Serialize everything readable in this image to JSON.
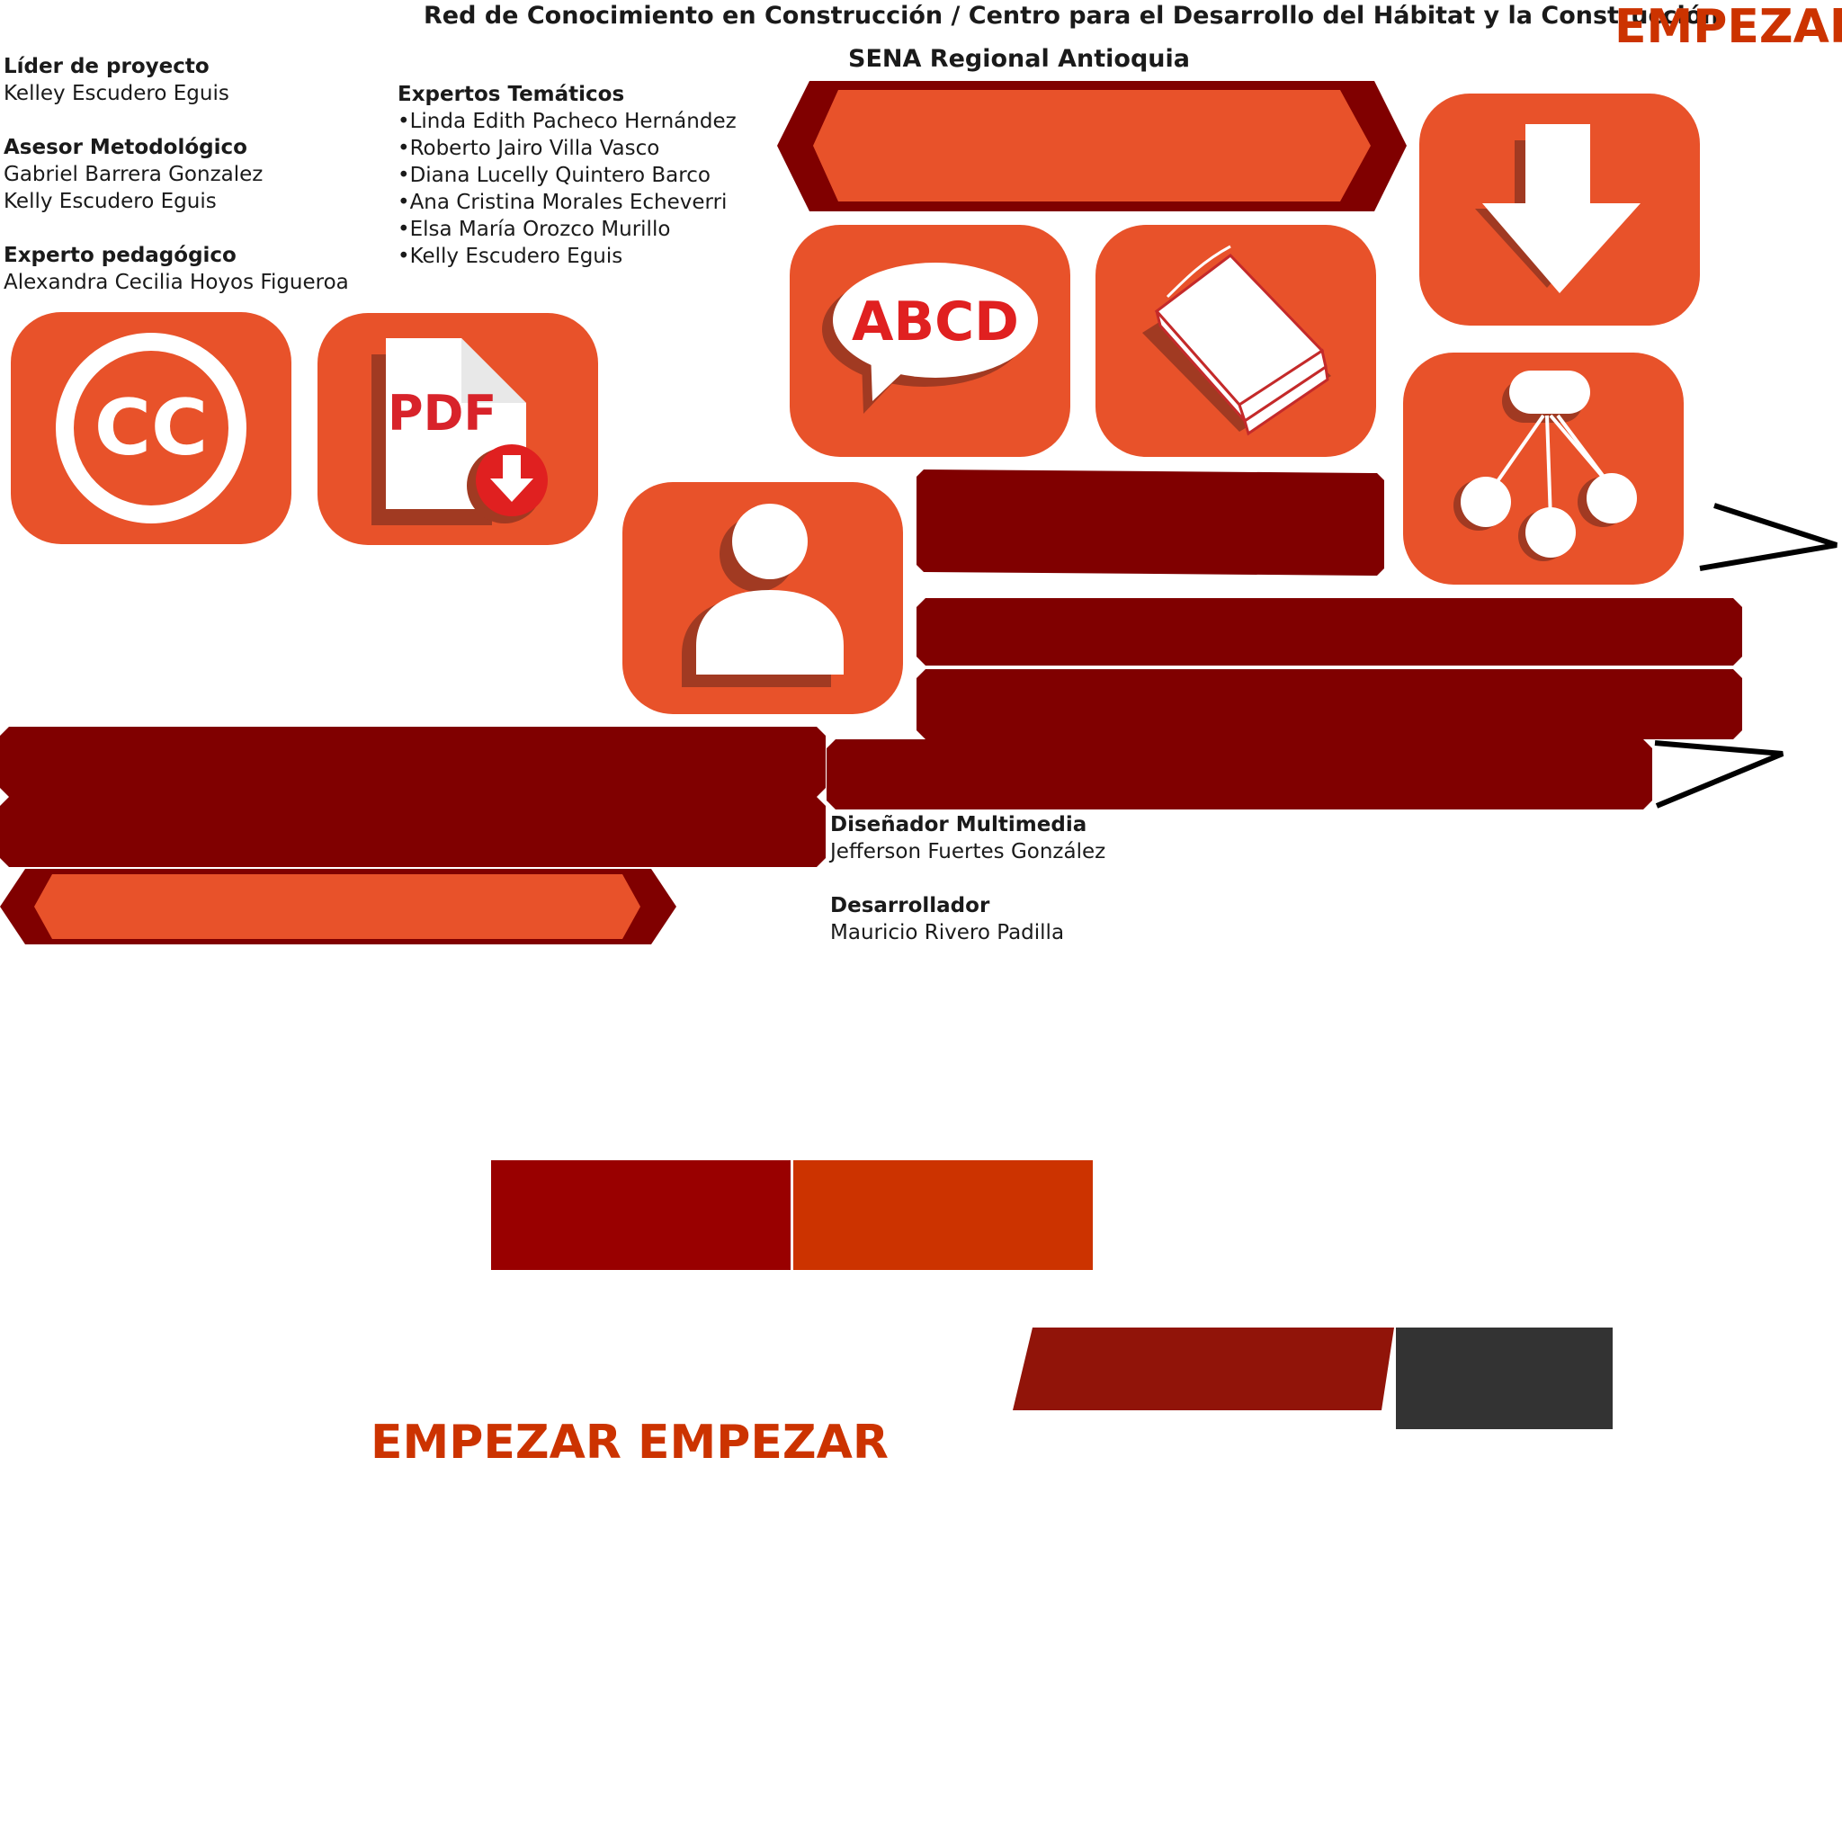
{
  "header": {
    "title": "Red de Conocimiento en Construcción / Centro para el Desarrollo del Hábitat y la Construcción",
    "subtitle": "SENA Regional Antioquia",
    "start_label": "EMPEZAR"
  },
  "credits": {
    "lider_title": "Líder de proyecto",
    "lider_name": "Kelley Escudero Eguis",
    "asesor_title": "Asesor Metodológico",
    "asesor_names": [
      "Gabriel Barrera Gonzalez",
      "Kelly Escudero Eguis"
    ],
    "pedagogico_title": "Experto pedagógico",
    "pedagogico_name": "Alexandra Cecilia Hoyos Figueroa",
    "expertos_title": "Expertos Temáticos",
    "expertos_names": [
      "•Linda Edith Pacheco Hernández",
      "•Roberto Jairo Villa Vasco",
      "•Diana Lucelly Quintero Barco",
      "•Ana Cristina Morales Echeverri",
      "•Elsa María  Orozco Murillo",
      "•Kelly Escudero Eguis"
    ],
    "disenador_title": "Diseñador Multimedia",
    "disenador_name": "Jefferson Fuertes González",
    "desarrollador_title": "Desarrollador",
    "desarrollador_name": "Mauricio Rivero Padilla"
  },
  "icons": {
    "cc": "cc-license-icon",
    "pdf": "pdf-download-icon",
    "pdf_text": "PDF",
    "glossary": "glossary-speech-icon",
    "glossary_text": "ABCD",
    "book": "book-icon",
    "download": "download-arrow-icon",
    "sitemap": "sitemap-icon",
    "user": "user-profile-icon"
  },
  "bottom": {
    "start_label_repeat": "EMPEZAR EMPEZAR"
  },
  "colors": {
    "tile": "#e8522a",
    "bar": "#800000",
    "text_accent": "#cc3300",
    "swatch_dark_red": "#990000",
    "swatch_orange": "#cc3300",
    "swatch_parallelogram": "#911409",
    "swatch_dark_gray": "#333333"
  }
}
